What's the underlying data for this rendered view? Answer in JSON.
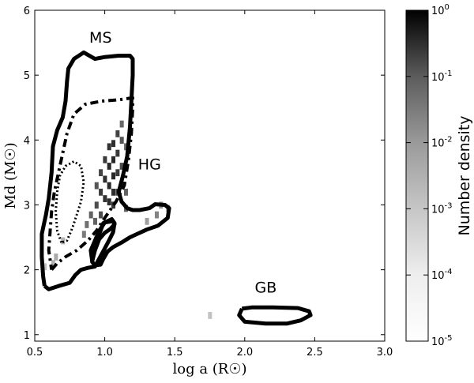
{
  "chart_data": {
    "type": "heatmap",
    "title": "",
    "xlabel": "log a  (R☉)",
    "ylabel": "Md  (M☉)",
    "xlim": [
      0.5,
      3.0
    ],
    "ylim": [
      0.9,
      6.0
    ],
    "xticks": [
      "0.5",
      "1.0",
      "1.5",
      "2.0",
      "2.5",
      "3.0"
    ],
    "yticks": [
      "1",
      "2",
      "3",
      "4",
      "5",
      "6"
    ],
    "colorbar": {
      "label": "Number density",
      "scale": "log",
      "range": [
        1e-05,
        1
      ],
      "ticks": [
        {
          "base": "10",
          "exp": "0"
        },
        {
          "base": "10",
          "exp": "-1"
        },
        {
          "base": "10",
          "exp": "-2"
        },
        {
          "base": "10",
          "exp": "-3"
        },
        {
          "base": "10",
          "exp": "-4"
        },
        {
          "base": "10",
          "exp": "-5"
        }
      ]
    },
    "cell_size": {
      "dx": 0.025,
      "dy": 0.1
    },
    "cells": [
      {
        "x": 1.06,
        "y": 3.95,
        "v": 0.15
      },
      {
        "x": 1.06,
        "y": 3.7,
        "v": 0.2
      },
      {
        "x": 1.06,
        "y": 3.45,
        "v": 0.2
      },
      {
        "x": 1.06,
        "y": 3.2,
        "v": 0.15
      },
      {
        "x": 1.06,
        "y": 3.0,
        "v": 0.1
      },
      {
        "x": 1.03,
        "y": 3.9,
        "v": 0.12
      },
      {
        "x": 1.03,
        "y": 3.6,
        "v": 0.2
      },
      {
        "x": 1.03,
        "y": 3.3,
        "v": 0.2
      },
      {
        "x": 1.03,
        "y": 3.05,
        "v": 0.15
      },
      {
        "x": 1.0,
        "y": 3.7,
        "v": 0.08
      },
      {
        "x": 1.0,
        "y": 3.4,
        "v": 0.15
      },
      {
        "x": 1.0,
        "y": 3.1,
        "v": 0.12
      },
      {
        "x": 0.97,
        "y": 3.5,
        "v": 0.05
      },
      {
        "x": 0.97,
        "y": 3.2,
        "v": 0.08
      },
      {
        "x": 0.94,
        "y": 3.3,
        "v": 0.02
      },
      {
        "x": 0.94,
        "y": 3.0,
        "v": 0.03
      },
      {
        "x": 1.09,
        "y": 4.1,
        "v": 0.05
      },
      {
        "x": 1.09,
        "y": 3.8,
        "v": 0.08
      },
      {
        "x": 1.09,
        "y": 3.5,
        "v": 0.08
      },
      {
        "x": 1.09,
        "y": 3.2,
        "v": 0.05
      },
      {
        "x": 1.12,
        "y": 4.0,
        "v": 0.02
      },
      {
        "x": 1.12,
        "y": 3.6,
        "v": 0.03
      },
      {
        "x": 1.12,
        "y": 3.3,
        "v": 0.02
      },
      {
        "x": 1.15,
        "y": 3.2,
        "v": 0.01
      },
      {
        "x": 1.15,
        "y": 2.95,
        "v": 0.01
      },
      {
        "x": 1.12,
        "y": 4.25,
        "v": 0.008
      },
      {
        "x": 1.15,
        "y": 3.9,
        "v": 0.005
      },
      {
        "x": 0.9,
        "y": 2.85,
        "v": 0.01
      },
      {
        "x": 0.87,
        "y": 2.7,
        "v": 0.005
      },
      {
        "x": 0.85,
        "y": 2.55,
        "v": 0.003
      },
      {
        "x": 0.93,
        "y": 2.75,
        "v": 0.01
      },
      {
        "x": 0.97,
        "y": 2.85,
        "v": 0.03
      },
      {
        "x": 1.4,
        "y": 3.0,
        "v": 0.0008
      },
      {
        "x": 1.37,
        "y": 2.85,
        "v": 0.002
      },
      {
        "x": 1.45,
        "y": 2.95,
        "v": 0.0004
      },
      {
        "x": 1.3,
        "y": 2.75,
        "v": 0.0005
      },
      {
        "x": 0.63,
        "y": 2.1,
        "v": 0.0002
      },
      {
        "x": 0.57,
        "y": 2.05,
        "v": 0.0001
      },
      {
        "x": 0.65,
        "y": 2.2,
        "v": 0.0003
      },
      {
        "x": 0.7,
        "y": 2.45,
        "v": 0.0002
      },
      {
        "x": 1.75,
        "y": 1.3,
        "v": 0.0001
      }
    ],
    "contours": [
      {
        "name": "outer-solid",
        "style": "solid",
        "points": [
          [
            0.57,
            1.75
          ],
          [
            0.6,
            1.7
          ],
          [
            0.67,
            1.75
          ],
          [
            0.75,
            1.8
          ],
          [
            0.79,
            1.92
          ],
          [
            0.83,
            2.0
          ],
          [
            0.88,
            2.03
          ],
          [
            0.93,
            2.05
          ],
          [
            0.98,
            2.25
          ],
          [
            1.03,
            2.45
          ],
          [
            1.06,
            2.58
          ],
          [
            1.07,
            2.72
          ],
          [
            1.05,
            2.78
          ],
          [
            0.99,
            2.72
          ],
          [
            0.97,
            2.6
          ],
          [
            0.94,
            2.45
          ],
          [
            0.92,
            2.3
          ],
          [
            0.91,
            2.12
          ],
          [
            0.93,
            2.07
          ],
          [
            0.97,
            2.08
          ],
          [
            0.99,
            2.17
          ],
          [
            1.02,
            2.28
          ],
          [
            1.06,
            2.35
          ],
          [
            1.12,
            2.42
          ],
          [
            1.18,
            2.5
          ],
          [
            1.23,
            2.55
          ],
          [
            1.3,
            2.62
          ],
          [
            1.38,
            2.68
          ],
          [
            1.45,
            2.8
          ],
          [
            1.46,
            2.95
          ],
          [
            1.43,
            3.0
          ],
          [
            1.36,
            3.01
          ],
          [
            1.32,
            2.95
          ],
          [
            1.25,
            2.92
          ],
          [
            1.2,
            2.92
          ],
          [
            1.16,
            2.95
          ],
          [
            1.12,
            3.05
          ],
          [
            1.1,
            3.2
          ],
          [
            1.13,
            3.45
          ],
          [
            1.16,
            3.75
          ],
          [
            1.18,
            4.2
          ],
          [
            1.19,
            4.6
          ],
          [
            1.2,
            5.0
          ],
          [
            1.2,
            5.25
          ],
          [
            1.18,
            5.3
          ],
          [
            1.1,
            5.3
          ],
          [
            1.0,
            5.28
          ],
          [
            0.93,
            5.25
          ],
          [
            0.85,
            5.35
          ],
          [
            0.78,
            5.25
          ],
          [
            0.74,
            5.1
          ],
          [
            0.73,
            4.9
          ],
          [
            0.72,
            4.6
          ],
          [
            0.7,
            4.35
          ],
          [
            0.66,
            4.15
          ],
          [
            0.63,
            3.9
          ],
          [
            0.62,
            3.5
          ],
          [
            0.6,
            3.1
          ],
          [
            0.58,
            2.85
          ],
          [
            0.55,
            2.55
          ],
          [
            0.55,
            2.2
          ],
          [
            0.56,
            1.9
          ],
          [
            0.57,
            1.75
          ]
        ]
      },
      {
        "name": "inner-solid",
        "style": "solid",
        "points": [
          [
            0.91,
            2.13
          ],
          [
            0.93,
            2.3
          ],
          [
            0.96,
            2.47
          ],
          [
            1.0,
            2.57
          ],
          [
            1.04,
            2.63
          ],
          [
            1.07,
            2.7
          ],
          [
            1.06,
            2.75
          ],
          [
            1.0,
            2.73
          ],
          [
            0.96,
            2.6
          ],
          [
            0.93,
            2.45
          ],
          [
            0.9,
            2.3
          ],
          [
            0.91,
            2.13
          ]
        ]
      },
      {
        "name": "dashdot",
        "style": "dashdot",
        "points": [
          [
            0.62,
            2.0
          ],
          [
            0.66,
            2.1
          ],
          [
            0.72,
            2.2
          ],
          [
            0.8,
            2.3
          ],
          [
            0.88,
            2.45
          ],
          [
            0.94,
            2.6
          ],
          [
            1.0,
            2.8
          ],
          [
            1.08,
            3.05
          ],
          [
            1.14,
            3.3
          ],
          [
            1.17,
            3.7
          ],
          [
            1.19,
            4.1
          ],
          [
            1.2,
            4.5
          ],
          [
            1.2,
            4.65
          ],
          [
            1.1,
            4.62
          ],
          [
            0.98,
            4.6
          ],
          [
            0.86,
            4.55
          ],
          [
            0.78,
            4.4
          ],
          [
            0.73,
            4.1
          ],
          [
            0.7,
            3.8
          ],
          [
            0.67,
            3.5
          ],
          [
            0.64,
            3.2
          ],
          [
            0.62,
            2.9
          ],
          [
            0.61,
            2.6
          ],
          [
            0.6,
            2.3
          ],
          [
            0.62,
            2.0
          ]
        ]
      },
      {
        "name": "dotted",
        "style": "dotted",
        "points": [
          [
            0.69,
            2.42
          ],
          [
            0.66,
            2.6
          ],
          [
            0.65,
            2.9
          ],
          [
            0.66,
            3.2
          ],
          [
            0.68,
            3.45
          ],
          [
            0.72,
            3.6
          ],
          [
            0.78,
            3.67
          ],
          [
            0.83,
            3.6
          ],
          [
            0.85,
            3.35
          ],
          [
            0.83,
            3.05
          ],
          [
            0.8,
            2.85
          ],
          [
            0.77,
            2.65
          ],
          [
            0.73,
            2.45
          ],
          [
            0.69,
            2.42
          ]
        ]
      },
      {
        "name": "gb-solid",
        "style": "solid",
        "points": [
          [
            1.98,
            1.4
          ],
          [
            2.05,
            1.42
          ],
          [
            2.2,
            1.42
          ],
          [
            2.38,
            1.41
          ],
          [
            2.46,
            1.36
          ],
          [
            2.47,
            1.3
          ],
          [
            2.4,
            1.22
          ],
          [
            2.3,
            1.17
          ],
          [
            2.15,
            1.17
          ],
          [
            2.0,
            1.2
          ],
          [
            1.96,
            1.3
          ],
          [
            1.98,
            1.4
          ]
        ]
      }
    ],
    "annotations": [
      {
        "text": "MS",
        "x": 0.97,
        "y": 5.5
      },
      {
        "text": "HG",
        "x": 1.32,
        "y": 3.55
      },
      {
        "text": "GB",
        "x": 2.15,
        "y": 1.65
      }
    ]
  }
}
